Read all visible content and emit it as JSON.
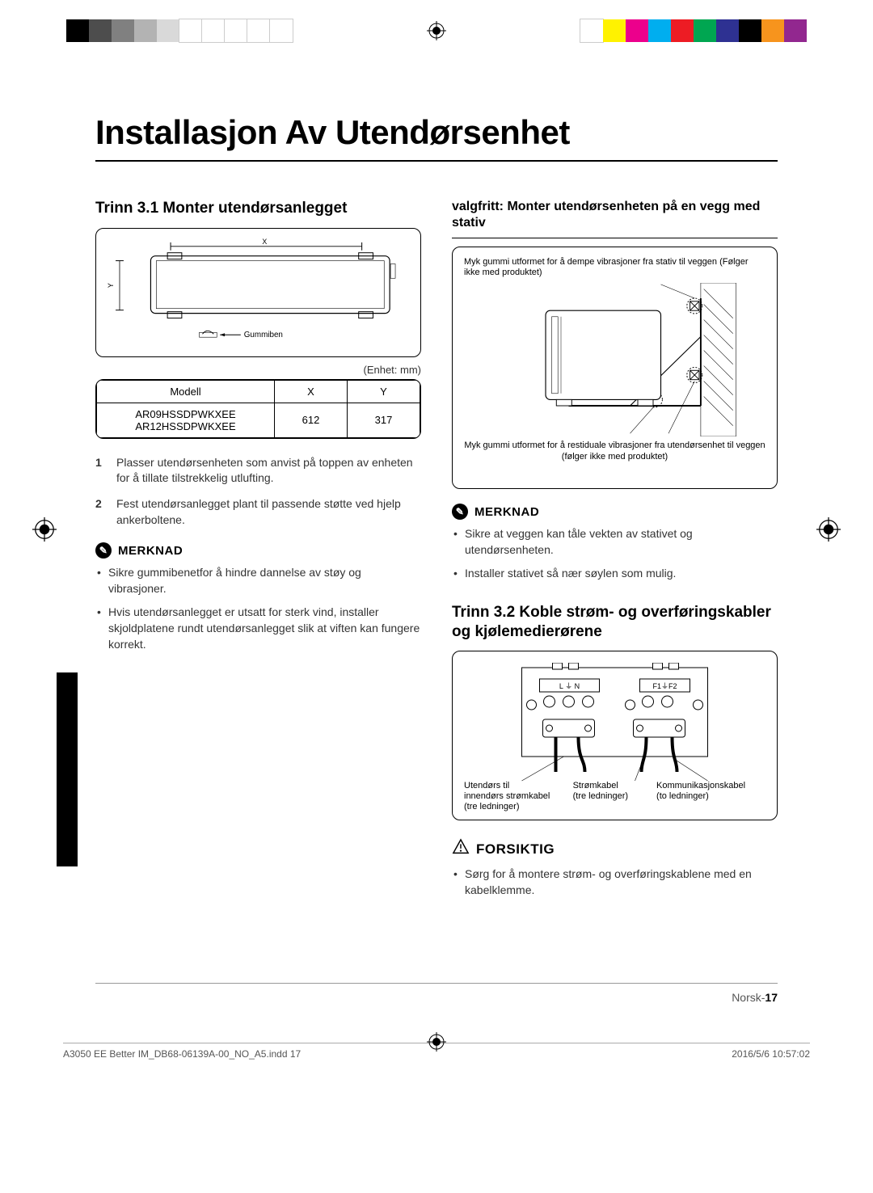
{
  "print_marks": {
    "left_bar_colors": [
      "#000000",
      "#4d4d4d",
      "#808080",
      "#b3b3b3",
      "#d9d9d9",
      "#ffffff",
      "#ffffff",
      "#ffffff",
      "#ffffff",
      "#ffffff"
    ],
    "right_bar_colors": [
      "#ffffff",
      "#fff200",
      "#ec008c",
      "#00aeef",
      "#ed1c24",
      "#00a651",
      "#2e3192",
      "#000000",
      "#f7941d",
      "#92278f"
    ],
    "footer_file": "A3050 EE Better IM_DB68-06139A-00_NO_A5.indd   17",
    "footer_date": "2016/5/6   10:57:02"
  },
  "page": {
    "title": "Installasjon Av Utendørsenhet",
    "footer_lang": "Norsk",
    "footer_page": "17"
  },
  "left": {
    "heading": "Trinn 3.1 Monter utendørsanlegget",
    "diagram": {
      "x_label": "X",
      "y_label": "Y",
      "rubber_label": "Gummiben"
    },
    "unit_note": "(Enhet: mm)",
    "table": {
      "headers": [
        "Modell",
        "X",
        "Y"
      ],
      "rows": [
        {
          "model_a": "AR09HSSDPWKXEE",
          "model_b": "AR12HSSDPWKXEE",
          "x": "612",
          "y": "317"
        }
      ]
    },
    "steps": [
      {
        "n": "1",
        "t": "Plasser utendørsenheten som anvist på toppen av enheten for å tillate tilstrekkelig utlufting."
      },
      {
        "n": "2",
        "t": "Fest utendørsanlegget plant til passende støtte ved hjelp ankerboltene."
      }
    ],
    "note_label": "MERKNAD",
    "notes": [
      "Sikre gummibenetfor å hindre dannelse av støy og vibrasjoner.",
      "Hvis utendørsanlegget er utsatt for sterk vind, installer skjoldplatene rundt utendørsanlegget slik at viften kan fungere korrekt."
    ]
  },
  "right": {
    "sub_heading": "valgfritt: Monter utendørsenheten på en vegg med stativ",
    "diagram": {
      "top_note": "Myk gummi utformet for å dempe vibrasjoner fra stativ til veggen (Følger ikke med produktet)",
      "bottom_note": "Myk gummi utformet for å restiduale vibrasjoner fra utendørsenhet til veggen (følger ikke med produktet)"
    },
    "note_label": "MERKNAD",
    "notes": [
      "Sikre at veggen kan tåle vekten av stativet og utendørsenheten.",
      "Installer stativet så nær søylen som mulig."
    ],
    "heading2": "Trinn 3.2  Koble strøm- og overføringskabler og kjølemedierørene",
    "wiring": {
      "term1": "L ⏚ N",
      "term2": "F1⏚F2",
      "label1_a": "Utendørs til",
      "label1_b": "innendørs strømkabel",
      "label1_c": "(tre ledninger)",
      "label2_a": "Strømkabel",
      "label2_b": "(tre ledninger)",
      "label3_a": "Kommunikasjonskabel",
      "label3_b": "(to ledninger)"
    },
    "caution_label": "FORSIKTIG",
    "cautions": [
      "Sørg for å montere strøm- og overføringskablene med en kabelklemme."
    ]
  }
}
